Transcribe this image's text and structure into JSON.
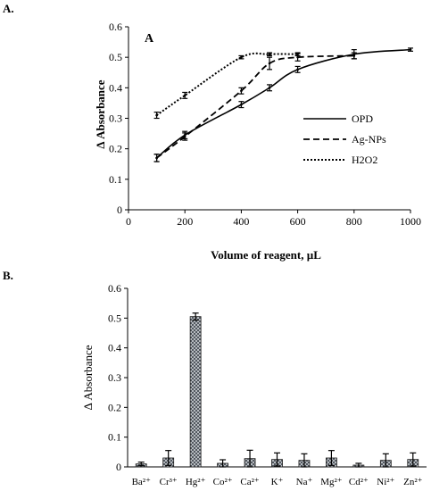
{
  "chart_data": [
    {
      "panel_label": "A.",
      "inset_label": "A",
      "type": "line",
      "title": "",
      "xlabel": "Volume of reagent, µL",
      "ylabel": "Δ Absorbance",
      "xlim": [
        0,
        1000
      ],
      "ylim": [
        0,
        0.6
      ],
      "xticks": [
        "0",
        "200",
        "400",
        "600",
        "800",
        "1000"
      ],
      "yticks": [
        "0",
        "0.1",
        "0.2",
        "0.3",
        "0.4",
        "0.5",
        "0.6"
      ],
      "grid": false,
      "legend_position": "right",
      "series": [
        {
          "name": "OPD",
          "style": "solid",
          "x": [
            100,
            200,
            400,
            500,
            600,
            800,
            1000
          ],
          "y": [
            0.17,
            0.245,
            0.345,
            0.4,
            0.46,
            0.51,
            0.525
          ],
          "err": [
            0.012,
            0.012,
            0.01,
            0.01,
            0.01,
            0.015,
            0.005
          ]
        },
        {
          "name": "Ag-NPs",
          "style": "dashed",
          "x": [
            100,
            200,
            400,
            500,
            600,
            800
          ],
          "y": [
            0.17,
            0.24,
            0.39,
            0.48,
            0.5,
            0.505
          ],
          "err": [
            0.012,
            0.012,
            0.01,
            0.02,
            0.012,
            0.01
          ]
        },
        {
          "name": "H2O2",
          "style": "dotted",
          "x": [
            100,
            200,
            400,
            500,
            600
          ],
          "y": [
            0.31,
            0.375,
            0.5,
            0.51,
            0.51
          ],
          "err": [
            0.01,
            0.01,
            0.005,
            0.005,
            0.005
          ]
        }
      ]
    },
    {
      "panel_label": "B.",
      "type": "bar",
      "title": "",
      "xlabel": "",
      "ylabel": "Δ Absorbance",
      "ylim": [
        0,
        0.6
      ],
      "yticks": [
        "0",
        "0.1",
        "0.2",
        "0.3",
        "0.4",
        "0.5",
        "0.6"
      ],
      "grid": false,
      "categories": [
        "Ba²⁺",
        "Cr³⁺",
        "Hg²⁺",
        "Co²⁺",
        "Ca²⁺",
        "K⁺",
        "Na⁺",
        "Mg²⁺",
        "Cd²⁺",
        "Ni²⁺",
        "Zn²⁺"
      ],
      "values": [
        0.01,
        0.03,
        0.505,
        0.012,
        0.028,
        0.025,
        0.022,
        0.03,
        0.006,
        0.022,
        0.025
      ],
      "err": [
        0.006,
        0.025,
        0.012,
        0.012,
        0.028,
        0.022,
        0.022,
        0.025,
        0.006,
        0.022,
        0.022
      ]
    }
  ]
}
